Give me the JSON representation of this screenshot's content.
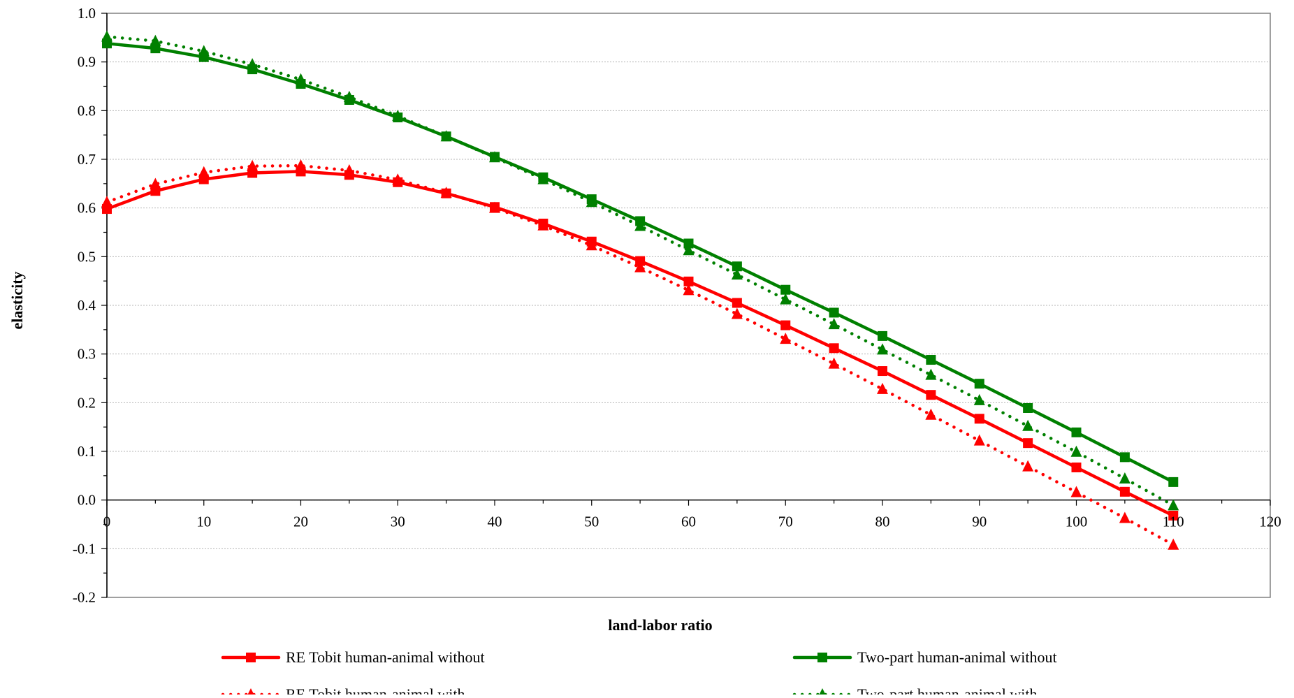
{
  "chart_data": {
    "type": "line",
    "xlabel": "land-labor ratio",
    "ylabel": "elasticity",
    "xlim": [
      0,
      120
    ],
    "ylim": [
      -0.2,
      1.0
    ],
    "x_ticks": [
      0,
      10,
      20,
      30,
      40,
      50,
      60,
      70,
      80,
      90,
      100,
      110,
      120
    ],
    "y_ticks": [
      1.0,
      0.9,
      0.8,
      0.7,
      0.6,
      0.5,
      0.4,
      0.3,
      0.2,
      0.1,
      0.0,
      -0.1,
      -0.2
    ],
    "x_tick_labels": [
      "0",
      "10",
      "20",
      "30",
      "40",
      "50",
      "60",
      "70",
      "80",
      "90",
      "100",
      "110",
      "120"
    ],
    "y_tick_labels": [
      "1.0",
      "0.9",
      "0.8",
      "0.7",
      "0.6",
      "0.5",
      "0.4",
      "0.3",
      "0.2",
      "0.1",
      "0.0",
      "-0.1",
      "-0.2"
    ],
    "grid": "horizontal dotted",
    "legend_position": "bottom",
    "x": [
      0,
      5,
      10,
      15,
      20,
      25,
      30,
      35,
      40,
      45,
      50,
      55,
      60,
      65,
      70,
      75,
      80,
      85,
      90,
      95,
      100,
      105,
      110
    ],
    "series": [
      {
        "name": "RE Tobit human-animal without",
        "color": "#ff0000",
        "line_style": "solid",
        "marker": "square",
        "values": [
          0.598,
          0.635,
          0.659,
          0.672,
          0.675,
          0.668,
          0.653,
          0.63,
          0.602,
          0.568,
          0.531,
          0.491,
          0.449,
          0.405,
          0.359,
          0.312,
          0.265,
          0.216,
          0.167,
          0.117,
          0.067,
          0.017,
          -0.032
        ]
      },
      {
        "name": "RE Tobit human-animal with",
        "color": "#ff0000",
        "line_style": "dotted",
        "marker": "triangle",
        "values": [
          0.612,
          0.649,
          0.673,
          0.686,
          0.687,
          0.677,
          0.658,
          0.631,
          0.6,
          0.564,
          0.523,
          0.478,
          0.431,
          0.382,
          0.331,
          0.28,
          0.228,
          0.175,
          0.122,
          0.069,
          0.016,
          -0.037,
          -0.092
        ]
      },
      {
        "name": "Two-part human-animal without",
        "color": "#008000",
        "line_style": "solid",
        "marker": "square",
        "values": [
          0.938,
          0.928,
          0.91,
          0.885,
          0.855,
          0.822,
          0.786,
          0.747,
          0.705,
          0.663,
          0.618,
          0.573,
          0.527,
          0.48,
          0.432,
          0.385,
          0.337,
          0.288,
          0.239,
          0.189,
          0.139,
          0.088,
          0.037
        ]
      },
      {
        "name": "Two-part human-animal with",
        "color": "#008000",
        "line_style": "dotted",
        "marker": "triangle",
        "values": [
          0.952,
          0.943,
          0.922,
          0.895,
          0.864,
          0.828,
          0.789,
          0.747,
          0.704,
          0.659,
          0.612,
          0.563,
          0.513,
          0.463,
          0.412,
          0.361,
          0.309,
          0.257,
          0.205,
          0.152,
          0.099,
          0.044,
          -0.011
        ]
      }
    ]
  }
}
